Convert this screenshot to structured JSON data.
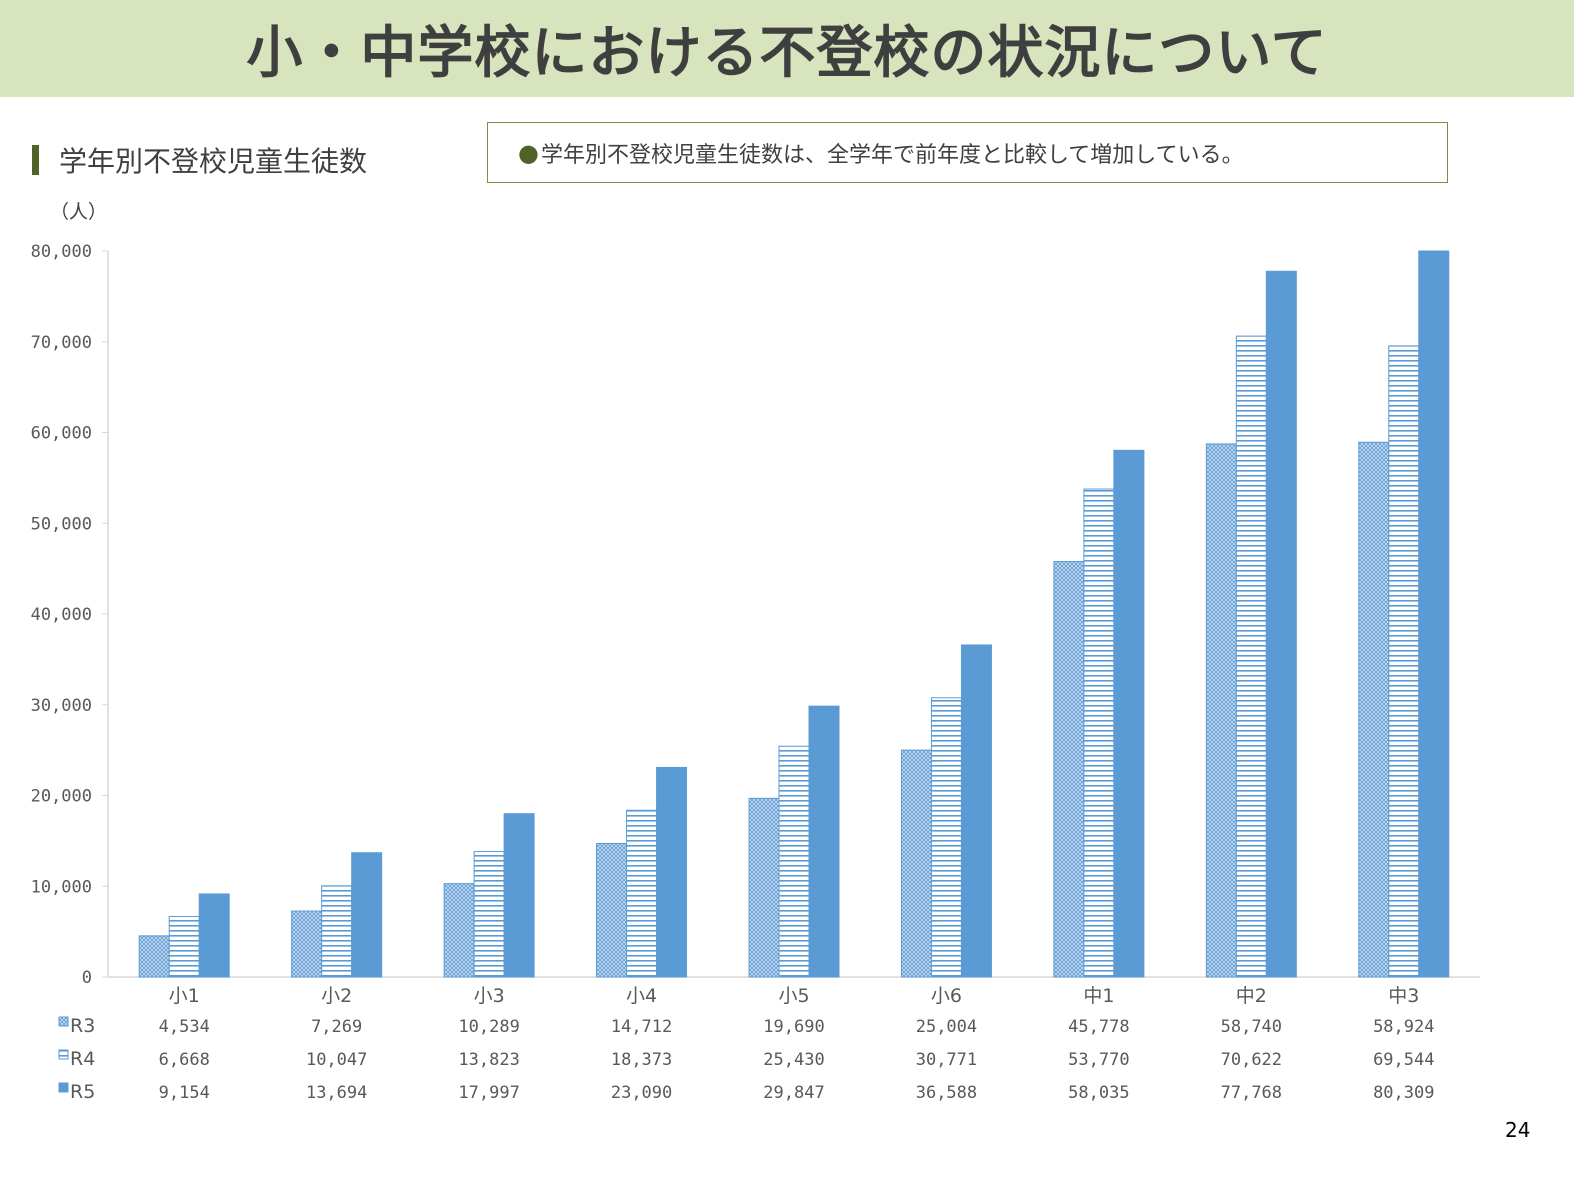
{
  "title": "小・中学校における不登校の状況について",
  "section_title": "学年別不登校児童生徒数",
  "note": "学年別不登校児童生徒数は、全学年で前年度と比較して増加している。",
  "page_number": "24",
  "chart_data": {
    "type": "bar",
    "ylabel": "（人）",
    "ylim": [
      0,
      80000
    ],
    "yticks": [
      0,
      10000,
      20000,
      30000,
      40000,
      50000,
      60000,
      70000,
      80000
    ],
    "ytick_labels": [
      "0",
      "10,000",
      "20,000",
      "30,000",
      "40,000",
      "50,000",
      "60,000",
      "70,000",
      "80,000"
    ],
    "categories": [
      "小1",
      "小2",
      "小3",
      "小4",
      "小5",
      "小6",
      "中1",
      "中2",
      "中3"
    ],
    "legend_placement": "data-table-left",
    "grid": false,
    "series": [
      {
        "name": "R3",
        "pattern": "dotted-crosshatch",
        "color": "#5b9bd5",
        "values": [
          4534,
          7269,
          10289,
          14712,
          19690,
          25004,
          45778,
          58740,
          58924
        ],
        "labels": [
          "4,534",
          "7,269",
          "10,289",
          "14,712",
          "19,690",
          "25,004",
          "45,778",
          "58,740",
          "58,924"
        ]
      },
      {
        "name": "R4",
        "pattern": "horizontal-stripes",
        "color": "#5b9bd5",
        "values": [
          6668,
          10047,
          13823,
          18373,
          25430,
          30771,
          53770,
          70622,
          69544
        ],
        "labels": [
          "6,668",
          "10,047",
          "13,823",
          "18,373",
          "25,430",
          "30,771",
          "53,770",
          "70,622",
          "69,544"
        ]
      },
      {
        "name": "R5",
        "pattern": "solid",
        "color": "#5b9bd5",
        "values": [
          9154,
          13694,
          17997,
          23090,
          29847,
          36588,
          58035,
          77768,
          80309
        ],
        "labels": [
          "9,154",
          "13,694",
          "17,997",
          "23,090",
          "29,847",
          "36,588",
          "58,035",
          "77,768",
          "80,309"
        ]
      }
    ]
  }
}
